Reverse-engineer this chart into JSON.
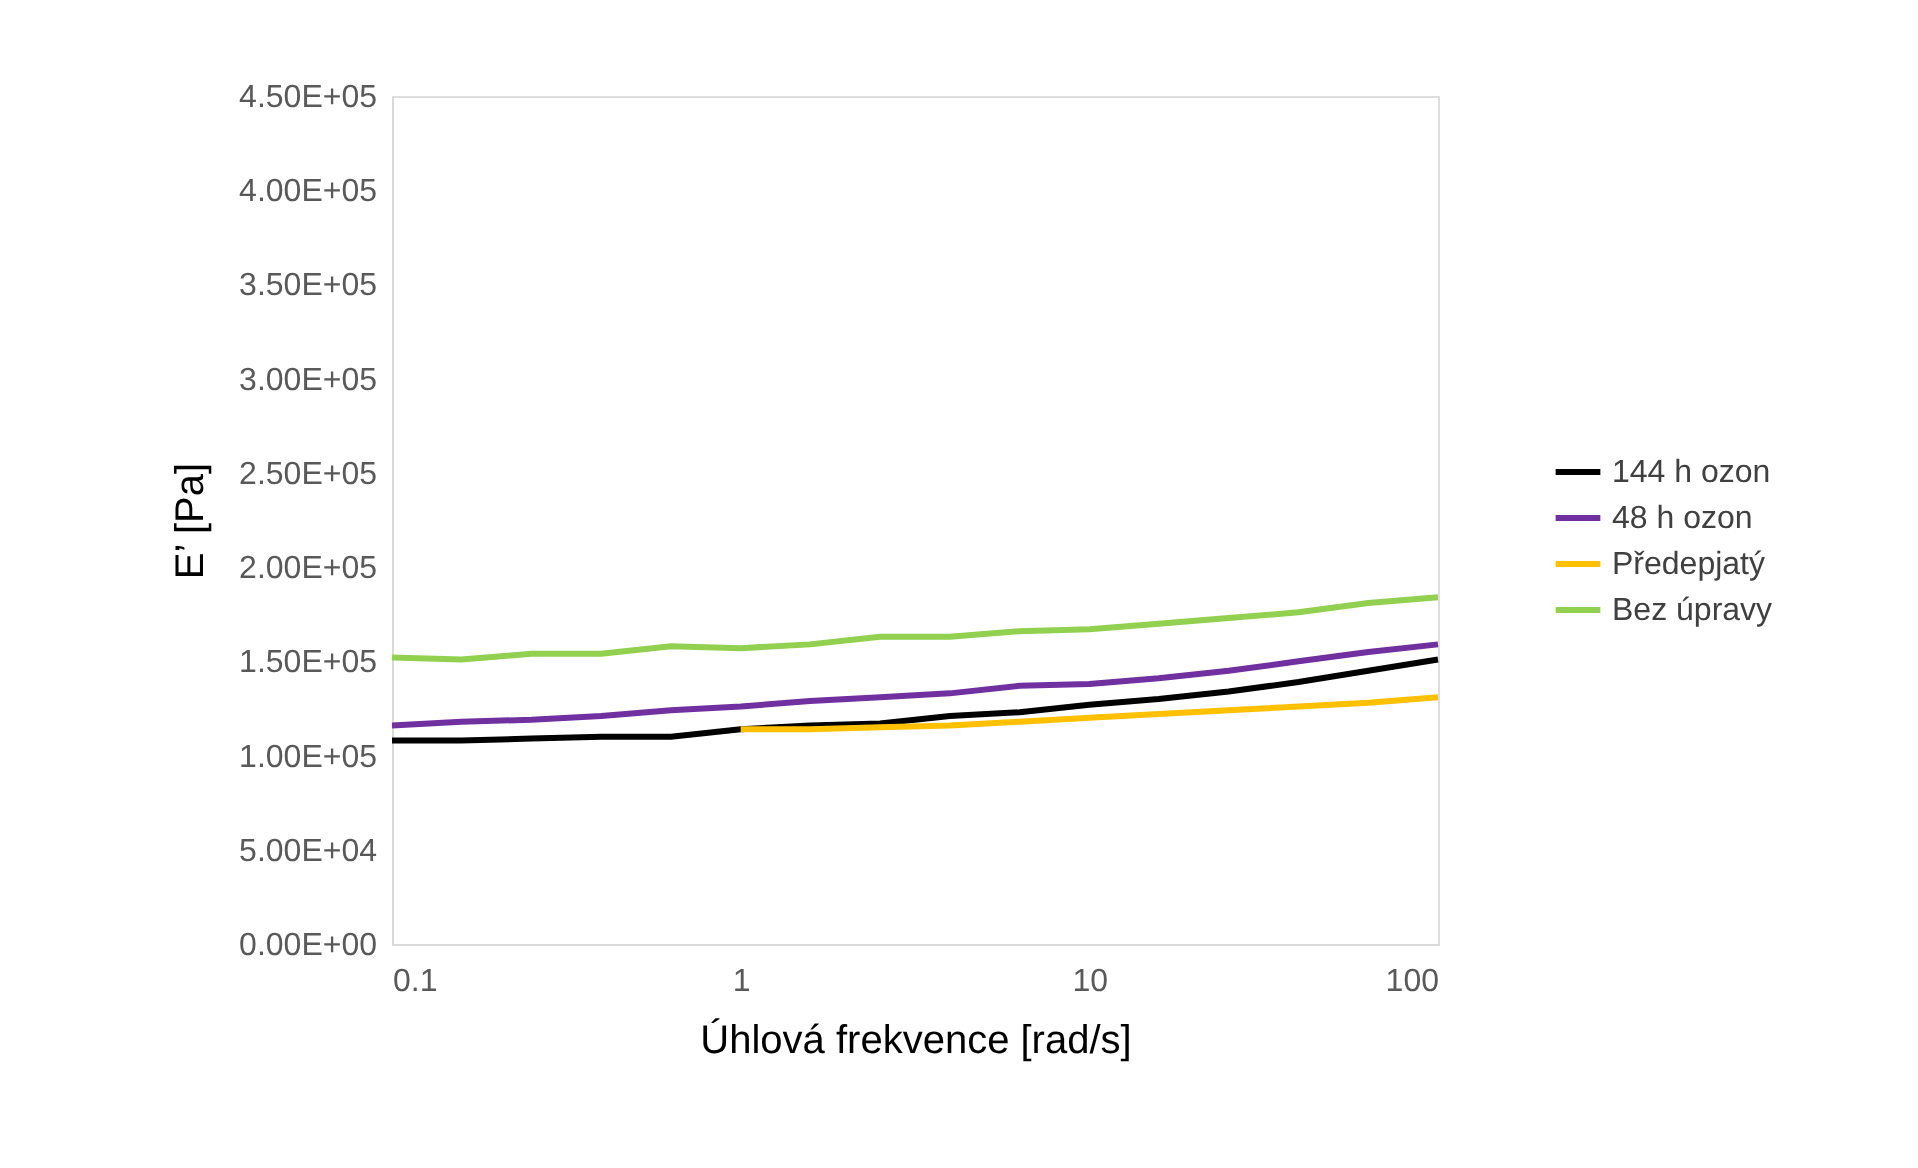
{
  "chart_data": {
    "type": "line",
    "xlabel": "Úhlová frekvence [rad/s]",
    "ylabel": "E’ [Pa]",
    "log": "x",
    "grid": false,
    "legend": "right",
    "line_style": "solid",
    "marker": "none",
    "xlim": [
      0.1,
      100
    ],
    "xticks": [
      0.1,
      1,
      10,
      100
    ],
    "ylim": [
      0,
      450000
    ],
    "yticks": [
      {
        "value": 0,
        "label": "0.00E+00"
      },
      {
        "value": 50000,
        "label": "5.00E+04"
      },
      {
        "value": 100000,
        "label": "1.00E+05"
      },
      {
        "value": 150000,
        "label": "1.50E+05"
      },
      {
        "value": 200000,
        "label": "2.00E+05"
      },
      {
        "value": 250000,
        "label": "2.50E+05"
      },
      {
        "value": 300000,
        "label": "3.00E+05"
      },
      {
        "value": 350000,
        "label": "3.50E+05"
      },
      {
        "value": 400000,
        "label": "4.00E+05"
      },
      {
        "value": 450000,
        "label": "4.50E+05"
      }
    ],
    "x": [
      0.1,
      0.158,
      0.251,
      0.398,
      0.631,
      1,
      1.58,
      2.51,
      3.98,
      6.31,
      10,
      15.8,
      25.1,
      39.8,
      63.1,
      100
    ],
    "series": [
      {
        "name": "144 h ozon",
        "color": "#000000",
        "values": [
          108000,
          108000,
          109000,
          110000,
          110000,
          114000,
          116000,
          117000,
          121000,
          123000,
          127000,
          130000,
          134000,
          139000,
          145000,
          151000
        ]
      },
      {
        "name": "48 h ozon",
        "color": "#7030a0",
        "values": [
          116000,
          118000,
          119000,
          121000,
          124000,
          126000,
          129000,
          131000,
          133000,
          137000,
          138000,
          141000,
          145000,
          150000,
          155000,
          159000
        ]
      },
      {
        "name": "Předepjatý",
        "color": "#ffc000",
        "x": [
          1,
          1.58,
          2.51,
          3.98,
          6.31,
          10,
          15.8,
          25.1,
          39.8,
          63.1,
          100
        ],
        "values": [
          114000,
          114000,
          115000,
          116000,
          118000,
          120000,
          122000,
          124000,
          126000,
          128000,
          131000
        ]
      },
      {
        "name": "Bez úpravy",
        "color": "#92d050",
        "values": [
          152000,
          151000,
          154000,
          154000,
          158000,
          157000,
          159000,
          163000,
          163000,
          166000,
          167000,
          170000,
          173000,
          176000,
          181000,
          184000
        ]
      }
    ]
  }
}
